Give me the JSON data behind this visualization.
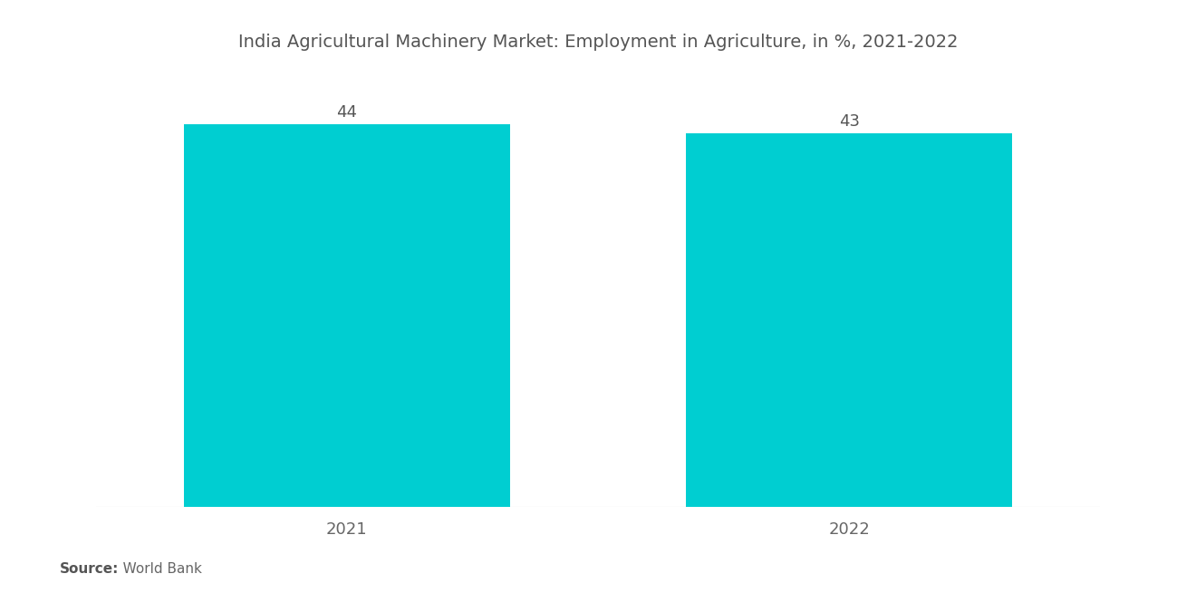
{
  "title": "India Agricultural Machinery Market: Employment in Agriculture, in %, 2021-2022",
  "categories": [
    "2021",
    "2022"
  ],
  "values": [
    44,
    43
  ],
  "bar_color": "#00CED1",
  "background_color": "#ffffff",
  "title_fontsize": 14,
  "label_fontsize": 13,
  "value_fontsize": 13,
  "source_bold": "Source:",
  "source_rest": "   World Bank",
  "ylim": [
    0,
    50
  ],
  "bar_width": 0.65,
  "x_positions": [
    0.5,
    1.5
  ],
  "xlim": [
    0.0,
    2.0
  ]
}
